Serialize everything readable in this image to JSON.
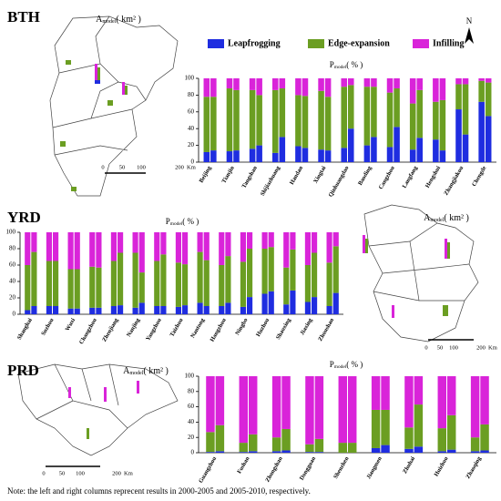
{
  "chart_data": [
    {
      "type": "bar",
      "region": "BTH",
      "ylabel": {
        "main": "P",
        "sub": "model",
        "unit": "( % )"
      },
      "map": {
        "title": {
          "main": "A",
          "sub": "model",
          "unit": "( km² )"
        },
        "scale_ticks": [
          0,
          50,
          100,
          200
        ],
        "scale_unit": "Km",
        "north": "N"
      },
      "legend": "top",
      "categories": [
        "Beijing",
        "Tianjin",
        "Tangshan",
        "Shijiazhuang",
        "Handan",
        "Xingtai",
        "Qinhuangdao",
        "Baoding",
        "Cangzhou",
        "Langfang",
        "Hengshui",
        "Zhangjiakou",
        "Chengde"
      ],
      "series": [
        {
          "name": "Leapfrogging",
          "color": "#1f2de0",
          "values": [
            [
              12,
              14
            ],
            [
              13,
              14
            ],
            [
              16,
              20
            ],
            [
              11,
              30
            ],
            [
              19,
              17
            ],
            [
              15,
              14
            ],
            [
              17,
              40
            ],
            [
              20,
              30
            ],
            [
              18,
              42
            ],
            [
              15,
              29
            ],
            [
              27,
              14
            ],
            [
              63,
              33
            ],
            [
              72,
              55
            ]
          ]
        },
        {
          "name": "Edge-expansion",
          "color": "#6b9e22",
          "values": [
            [
              66,
              64
            ],
            [
              75,
              72
            ],
            [
              70,
              60
            ],
            [
              75,
              58
            ],
            [
              61,
              62
            ],
            [
              70,
              64
            ],
            [
              73,
              52
            ],
            [
              70,
              60
            ],
            [
              65,
              46
            ],
            [
              55,
              57
            ],
            [
              45,
              60
            ],
            [
              30,
              60
            ],
            [
              25,
              40
            ]
          ]
        },
        {
          "name": "Infilling",
          "color": "#d924d9",
          "values": [
            [
              22,
              22
            ],
            [
              12,
              14
            ],
            [
              14,
              20
            ],
            [
              14,
              12
            ],
            [
              20,
              21
            ],
            [
              15,
              22
            ],
            [
              10,
              8
            ],
            [
              10,
              10
            ],
            [
              17,
              12
            ],
            [
              30,
              14
            ],
            [
              28,
              26
            ],
            [
              7,
              7
            ],
            [
              3,
              5
            ]
          ]
        }
      ],
      "ylim": [
        0,
        100
      ],
      "yticks": [
        0,
        20,
        40,
        60,
        80,
        100
      ]
    },
    {
      "type": "bar",
      "region": "YRD",
      "ylabel": {
        "main": "P",
        "sub": "model",
        "unit": "( % )"
      },
      "map": {
        "title": {
          "main": "A",
          "sub": "model",
          "unit": "( km² )"
        },
        "scale_ticks": [
          0,
          50,
          100,
          200
        ],
        "scale_unit": "Km"
      },
      "categories": [
        "Shanghai",
        "Suzhou",
        "Wuxi",
        "Changzhou",
        "Zhenjiang",
        "Nanjing",
        "Yangzhou",
        "Taizhou",
        "Nantong",
        "Hangzhou",
        "Ningbo",
        "Huzhou",
        "Shaoxing",
        "Jiaxing",
        "Zhoushan"
      ],
      "series": [
        {
          "name": "Leapfrogging",
          "color": "#1f2de0",
          "values": [
            [
              5,
              10
            ],
            [
              10,
              10
            ],
            [
              7,
              7
            ],
            [
              8,
              8
            ],
            [
              10,
              11
            ],
            [
              8,
              14
            ],
            [
              10,
              10
            ],
            [
              9,
              11
            ],
            [
              14,
              10
            ],
            [
              10,
              14
            ],
            [
              9,
              21
            ],
            [
              25,
              28
            ],
            [
              12,
              29
            ],
            [
              15,
              21
            ],
            [
              10,
              26
            ]
          ]
        },
        {
          "name": "Edge-expansion",
          "color": "#6b9e22",
          "values": [
            [
              55,
              66
            ],
            [
              55,
              55
            ],
            [
              48,
              48
            ],
            [
              50,
              49
            ],
            [
              55,
              64
            ],
            [
              67,
              37
            ],
            [
              55,
              63
            ],
            [
              54,
              50
            ],
            [
              62,
              56
            ],
            [
              50,
              57
            ],
            [
              55,
              59
            ],
            [
              55,
              54
            ],
            [
              45,
              50
            ],
            [
              45,
              54
            ],
            [
              53,
              57
            ]
          ]
        },
        {
          "name": "Infilling",
          "color": "#d924d9",
          "values": [
            [
              40,
              24
            ],
            [
              35,
              35
            ],
            [
              45,
              45
            ],
            [
              42,
              43
            ],
            [
              35,
              25
            ],
            [
              25,
              49
            ],
            [
              35,
              27
            ],
            [
              37,
              39
            ],
            [
              24,
              34
            ],
            [
              40,
              29
            ],
            [
              36,
              20
            ],
            [
              20,
              18
            ],
            [
              43,
              21
            ],
            [
              40,
              25
            ],
            [
              37,
              17
            ]
          ]
        }
      ],
      "ylim": [
        0,
        100
      ],
      "yticks": [
        0,
        20,
        40,
        60,
        80,
        100
      ]
    },
    {
      "type": "bar",
      "region": "PRD",
      "ylabel": {
        "main": "P",
        "sub": "model",
        "unit": "( % )"
      },
      "map": {
        "title": {
          "main": "A",
          "sub": "model",
          "unit": "( km² )"
        },
        "scale_ticks": [
          0,
          50,
          100,
          200
        ],
        "scale_unit": "Km"
      },
      "categories": [
        "Guangzhou",
        "Foshan",
        "Zhongshan",
        "Dongguan",
        "Shenzhen",
        "Jiangmen",
        "Zhuhai",
        "Huizhou",
        "Zhaoqing"
      ],
      "series": [
        {
          "name": "Leapfrogging",
          "color": "#1f2de0",
          "values": [
            [
              1,
              2
            ],
            [
              1,
              2
            ],
            [
              2,
              3
            ],
            [
              1,
              1
            ],
            [
              0,
              0
            ],
            [
              6,
              10
            ],
            [
              5,
              8
            ],
            [
              2,
              4
            ],
            [
              2,
              3
            ]
          ]
        },
        {
          "name": "Edge-expansion",
          "color": "#6b9e22",
          "values": [
            [
              26,
              34
            ],
            [
              12,
              22
            ],
            [
              18,
              28
            ],
            [
              10,
              17
            ],
            [
              13,
              13
            ],
            [
              50,
              46
            ],
            [
              28,
              55
            ],
            [
              30,
              45
            ],
            [
              18,
              34
            ]
          ]
        },
        {
          "name": "Infilling",
          "color": "#d924d9",
          "values": [
            [
              73,
              64
            ],
            [
              87,
              76
            ],
            [
              80,
              69
            ],
            [
              89,
              82
            ],
            [
              87,
              87
            ],
            [
              44,
              44
            ],
            [
              67,
              37
            ],
            [
              68,
              51
            ],
            [
              80,
              63
            ]
          ]
        }
      ],
      "ylim": [
        0,
        100
      ],
      "yticks": [
        0,
        20,
        40,
        60,
        80,
        100
      ]
    }
  ],
  "note": "Note: the left and right columns reprecent results in 2000-2005 and 2005-2010, respectively."
}
